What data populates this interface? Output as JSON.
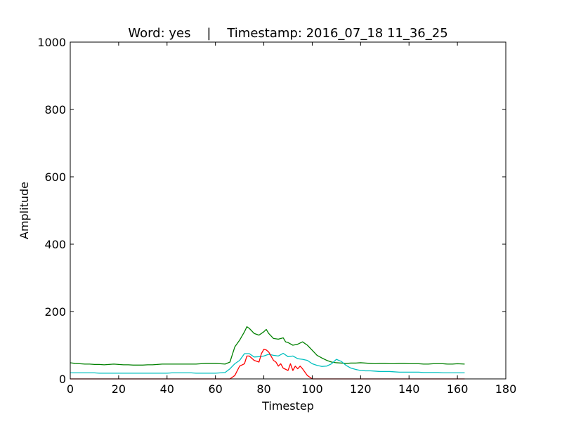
{
  "chart_data": {
    "type": "line",
    "title": "Word: yes    |    Timestamp: 2016_07_18 11_36_25",
    "xlabel": "Timestep",
    "ylabel": "Amplitude",
    "xlim": [
      0,
      180
    ],
    "ylim": [
      0,
      1000
    ],
    "xticks": [
      0,
      20,
      40,
      60,
      80,
      100,
      120,
      140,
      160,
      180
    ],
    "yticks": [
      0,
      200,
      400,
      600,
      800,
      1000
    ],
    "grid": false,
    "series": [
      {
        "color": "#008000",
        "x": [
          0,
          2,
          4,
          6,
          8,
          10,
          12,
          14,
          16,
          18,
          20,
          22,
          24,
          26,
          28,
          30,
          32,
          34,
          36,
          38,
          40,
          42,
          44,
          46,
          48,
          50,
          52,
          54,
          56,
          58,
          60,
          62,
          64,
          66,
          68,
          70,
          72,
          73,
          74,
          76,
          78,
          80,
          81,
          82,
          84,
          86,
          88,
          89,
          90,
          92,
          94,
          96,
          98,
          100,
          102,
          104,
          106,
          108,
          110,
          112,
          114,
          116,
          118,
          120,
          122,
          124,
          126,
          128,
          130,
          132,
          134,
          136,
          138,
          140,
          142,
          144,
          146,
          148,
          150,
          152,
          154,
          156,
          158,
          160,
          163
        ],
        "y": [
          48,
          46,
          45,
          44,
          44,
          43,
          43,
          42,
          43,
          44,
          43,
          42,
          42,
          41,
          41,
          41,
          42,
          42,
          43,
          44,
          44,
          44,
          44,
          44,
          44,
          44,
          44,
          45,
          46,
          46,
          46,
          45,
          44,
          50,
          95,
          115,
          140,
          155,
          150,
          135,
          130,
          140,
          147,
          135,
          120,
          118,
          122,
          110,
          108,
          100,
          103,
          110,
          100,
          85,
          70,
          62,
          55,
          50,
          48,
          47,
          46,
          47,
          47,
          48,
          47,
          46,
          45,
          46,
          46,
          45,
          45,
          46,
          46,
          45,
          45,
          45,
          44,
          44,
          45,
          45,
          45,
          44,
          44,
          45,
          44
        ]
      },
      {
        "color": "#00BFBF",
        "x": [
          0,
          2,
          4,
          6,
          8,
          10,
          12,
          14,
          16,
          18,
          20,
          22,
          24,
          26,
          28,
          30,
          32,
          34,
          36,
          38,
          40,
          42,
          44,
          46,
          48,
          50,
          52,
          54,
          56,
          58,
          60,
          62,
          64,
          66,
          68,
          70,
          72,
          74,
          76,
          78,
          80,
          82,
          84,
          86,
          88,
          90,
          92,
          94,
          96,
          98,
          100,
          102,
          104,
          106,
          108,
          110,
          112,
          114,
          116,
          118,
          120,
          122,
          124,
          126,
          128,
          130,
          132,
          134,
          136,
          138,
          140,
          142,
          144,
          146,
          148,
          150,
          152,
          154,
          156,
          158,
          160,
          163
        ],
        "y": [
          18,
          18,
          18,
          18,
          18,
          18,
          17,
          17,
          17,
          17,
          17,
          17,
          17,
          17,
          17,
          17,
          17,
          17,
          17,
          17,
          17,
          18,
          18,
          18,
          18,
          18,
          17,
          17,
          17,
          17,
          17,
          18,
          19,
          30,
          45,
          55,
          75,
          75,
          65,
          66,
          68,
          73,
          70,
          68,
          76,
          66,
          68,
          60,
          58,
          55,
          45,
          40,
          37,
          38,
          45,
          58,
          52,
          40,
          32,
          28,
          25,
          24,
          24,
          23,
          22,
          22,
          22,
          21,
          20,
          20,
          20,
          20,
          20,
          19,
          19,
          19,
          19,
          18,
          18,
          18,
          18,
          18
        ]
      },
      {
        "color": "#FF0000",
        "x": [
          0,
          10,
          20,
          30,
          40,
          50,
          60,
          65,
          66,
          68,
          70,
          72,
          73,
          74,
          76,
          78,
          79,
          80,
          81,
          82,
          84,
          85,
          86,
          87,
          88,
          90,
          91,
          92,
          93,
          94,
          95,
          96,
          98,
          100,
          110,
          120,
          130,
          140,
          150,
          160,
          163
        ],
        "y": [
          0,
          0,
          0,
          0,
          0,
          0,
          0,
          0,
          0,
          10,
          38,
          45,
          68,
          68,
          55,
          50,
          75,
          88,
          86,
          80,
          55,
          50,
          38,
          45,
          32,
          25,
          45,
          25,
          38,
          30,
          38,
          30,
          10,
          0,
          0,
          0,
          0,
          0,
          0,
          0,
          0
        ]
      }
    ]
  }
}
